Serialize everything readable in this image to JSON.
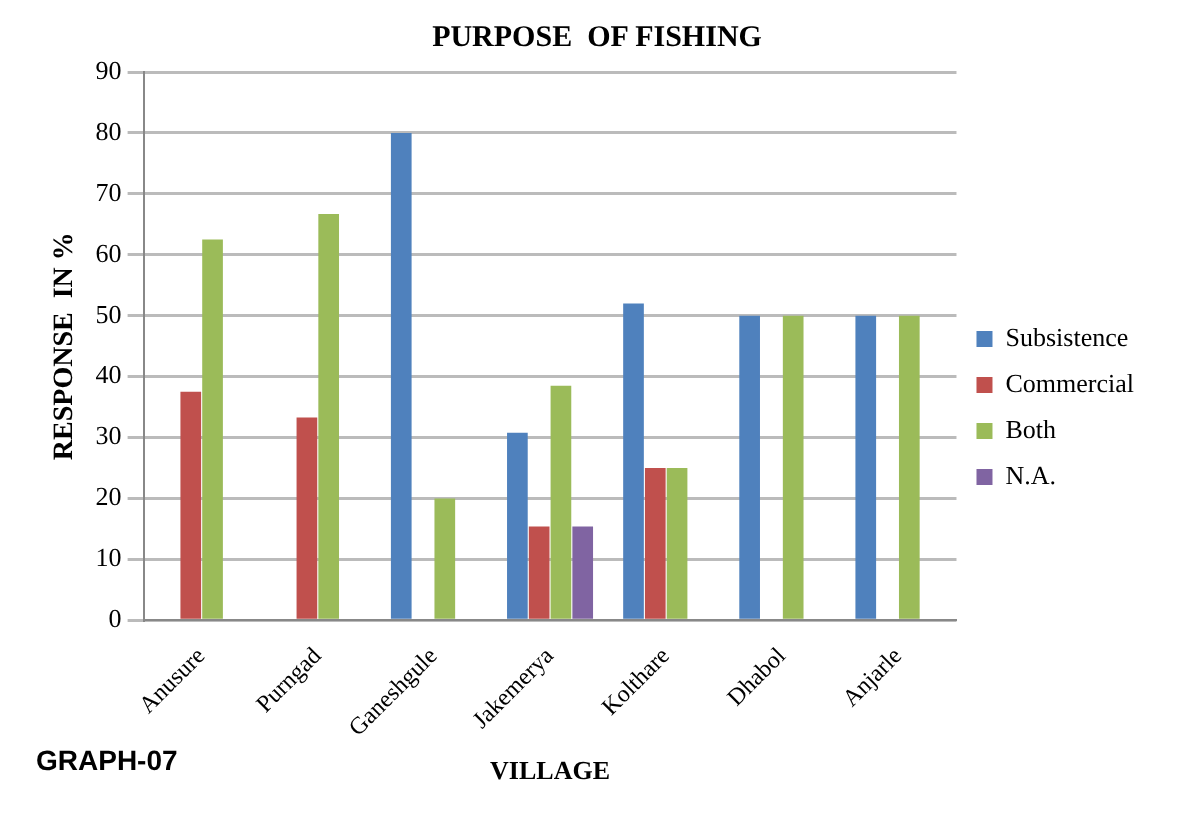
{
  "chart_data": {
    "type": "bar",
    "title": "PURPOSE  OF FISHING",
    "xlabel": "VILLAGE",
    "ylabel": "RESPONSE  IN %",
    "categories": [
      "Anusure",
      "Purngad",
      "Ganeshgule",
      "Jakemerya",
      "Kolthare",
      "Dhabol",
      "Anjarle"
    ],
    "series": [
      {
        "name": "Subsistence",
        "color": "#4f81bd",
        "values": [
          null,
          null,
          80,
          30.8,
          52,
          50,
          50
        ]
      },
      {
        "name": "Commercial",
        "color": "#c0504d",
        "values": [
          37.5,
          33.3,
          null,
          15.4,
          25,
          null,
          null
        ]
      },
      {
        "name": "Both",
        "color": "#9bbb59",
        "values": [
          62.5,
          66.7,
          20,
          38.5,
          25,
          50,
          50
        ]
      },
      {
        "name": "N.A.",
        "color": "#8064a2",
        "values": [
          null,
          null,
          null,
          15.4,
          null,
          null,
          null
        ]
      }
    ],
    "ylim": [
      0,
      90
    ],
    "yticks": [
      0,
      10,
      20,
      30,
      40,
      50,
      60,
      70,
      80,
      90
    ],
    "grid": "y",
    "legend": "right",
    "annotations": [
      "GRAPH-07"
    ]
  }
}
